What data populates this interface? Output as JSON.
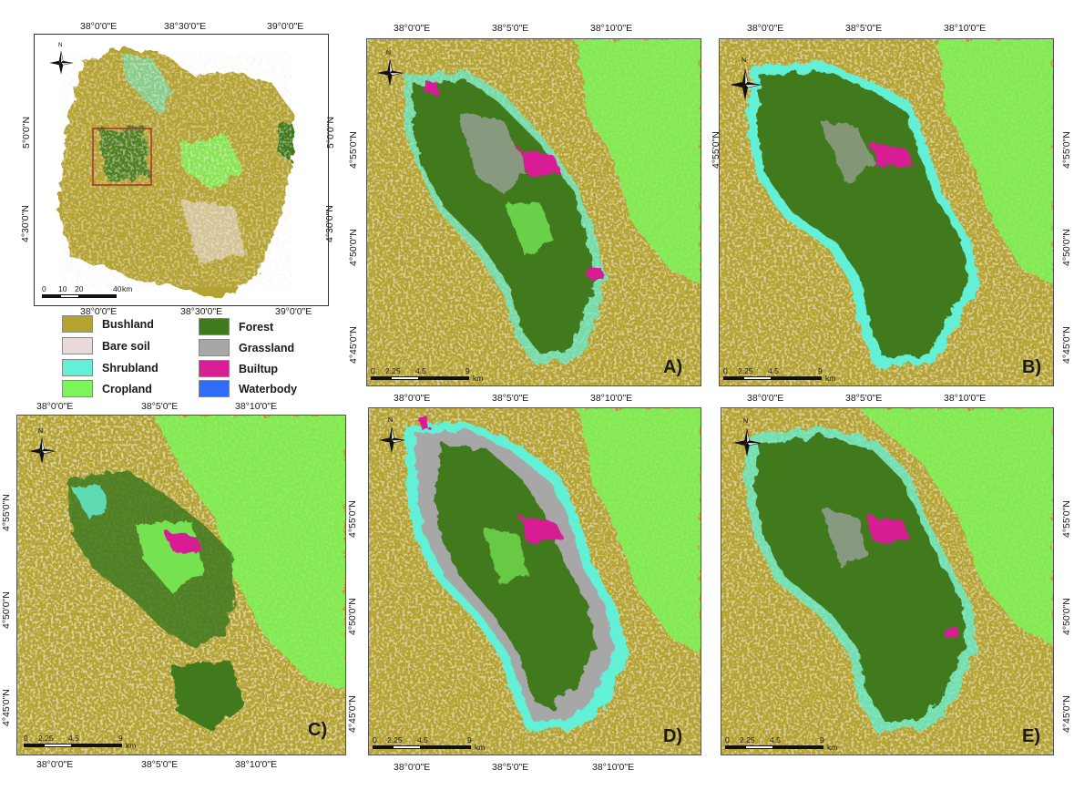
{
  "colors": {
    "bushland": "#b4a330",
    "bare_soil": "#e9d9d8",
    "shrubland": "#62f0d6",
    "cropland": "#7cf55a",
    "forest": "#3f7a1e",
    "grassland": "#a7a7a7",
    "builtup": "#d81f93",
    "waterbody": "#2f6df6"
  },
  "legend": [
    {
      "label": "Bushland",
      "color": "#b4a330"
    },
    {
      "label": "Bare soil",
      "color": "#e9d9d8"
    },
    {
      "label": "Shrubland",
      "color": "#62f0d6"
    },
    {
      "label": "Cropland",
      "color": "#7cf55a"
    },
    {
      "label": "Forest",
      "color": "#3f7a1e"
    },
    {
      "label": "Grassland",
      "color": "#a7a7a7"
    },
    {
      "label": "Builtup",
      "color": "#d81f93"
    },
    {
      "label": "Waterbody",
      "color": "#2f6df6"
    }
  ],
  "inset": {
    "top_lon": [
      "38°0'0\"E",
      "38°30'0\"E",
      "39°0'0\"E"
    ],
    "bottom_lon": [
      "38°0'0\"E",
      "38°30'0\"E",
      "39°0'0\"E"
    ],
    "lat_left": [
      "5°0'0\"N",
      "4°30'0\"N"
    ],
    "lat_right": [
      "5°0'0\"N",
      "4°30'0\"N"
    ],
    "scale": {
      "ticks": [
        "0",
        "10",
        "20",
        "40"
      ],
      "unit": "km"
    },
    "north": "N"
  },
  "panels": {
    "A": {
      "label": "A)",
      "top_lon": [
        "38°0'0\"E",
        "38°5'0\"E",
        "38°10'0\"E"
      ],
      "bottom_lon": [
        "38°0'0\"E",
        "38°5'0\"E",
        "38°10'0\"E"
      ],
      "lat": [
        "4°55'0\"N",
        "4°50'0\"N",
        "4°45'0\"N"
      ],
      "scale": {
        "ticks": [
          "0",
          "2.25",
          "4.5",
          "9"
        ],
        "unit": "km"
      },
      "north": "N"
    },
    "B": {
      "label": "B)",
      "top_lon": [
        "38°0'0\"E",
        "38°5'0\"E",
        "38°10'0\"E"
      ],
      "bottom_lon": [
        "38°0'0\"E",
        "38°5'0\"E",
        "38°10'0\"E"
      ],
      "lat": [
        "4°55'0\"N",
        "4°50'0\"N",
        "4°45'0\"N"
      ],
      "scale": {
        "ticks": [
          "0",
          "2.25",
          "4.5",
          "9"
        ],
        "unit": "km"
      },
      "north": "N"
    },
    "C": {
      "label": "C)",
      "top_lon": [
        "38°0'0\"E",
        "38°5'0\"E",
        "38°10'0\"E"
      ],
      "bottom_lon": [
        "38°0'0\"E",
        "38°5'0\"E",
        "38°10'0\"E"
      ],
      "lat": [
        "4°55'0\"N",
        "4°50'0\"N",
        "4°45'0\"N"
      ],
      "scale": {
        "ticks": [
          "0",
          "2.25",
          "4.5",
          "9"
        ],
        "unit": "km"
      },
      "north": "N"
    },
    "D": {
      "label": "D)",
      "bottom_lon": [
        "38°0'0\"E",
        "38°5'0\"E",
        "38°10'0\"E"
      ],
      "lat": [
        "4°55'0\"N",
        "4°50'0\"N",
        "4°45'0\"N"
      ],
      "scale": {
        "ticks": [
          "0",
          "2.25",
          "4.5",
          "9"
        ],
        "unit": "km"
      },
      "north": "N"
    },
    "E": {
      "label": "E)",
      "lat": [
        "4°55'0\"N",
        "4°50'0\"N",
        "4°45'0\"N"
      ],
      "scale": {
        "ticks": [
          "0",
          "2.25",
          "4.5",
          "9"
        ],
        "unit": "km"
      },
      "north": "N"
    }
  }
}
